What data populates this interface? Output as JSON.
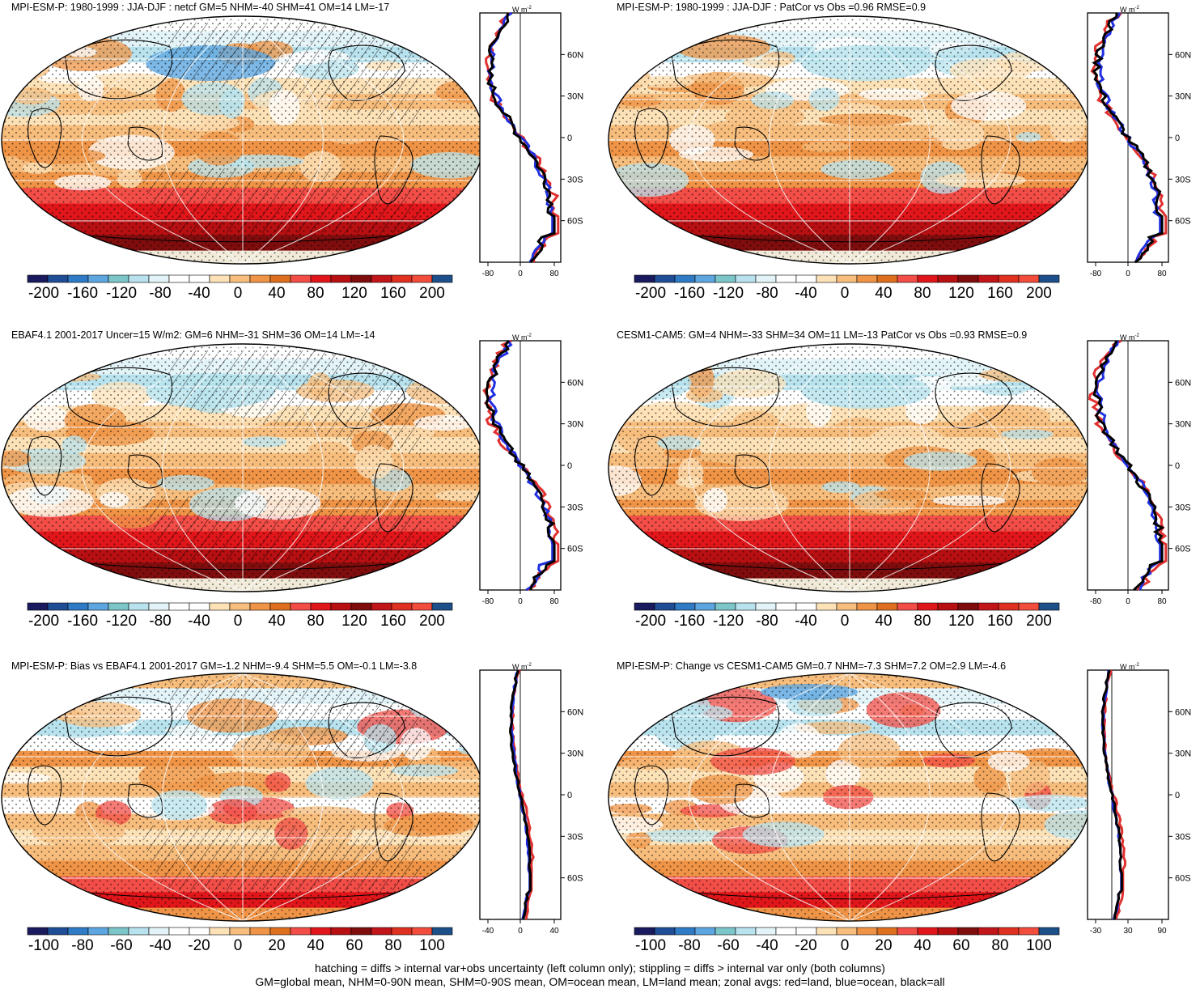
{
  "panels": [
    {
      "title": "MPI-ESM-P: 1980-1999 : JJA-DJF : netcf GM=5 NHM=-40 SHM=41 OM=14 LM=-17",
      "colorbar": [
        "-200",
        "-160",
        "-120",
        "-80",
        "-40",
        "0",
        "40",
        "80",
        "120",
        "160",
        "200"
      ],
      "zonal": {
        "unit": "W m",
        "unit_exp": "-2",
        "x_ticks": [
          "-80",
          "0",
          "80"
        ],
        "y_ticks": [
          "60N",
          "30N",
          "0",
          "30S",
          "60S"
        ]
      }
    },
    {
      "title": "MPI-ESM-P: 1980-1999 : JJA-DJF : PatCor vs Obs =0.96 RMSE=0.9",
      "colorbar": [
        "-200",
        "-160",
        "-120",
        "-80",
        "-40",
        "0",
        "40",
        "80",
        "120",
        "160",
        "200"
      ],
      "zonal": {
        "unit": "W m",
        "unit_exp": "-2",
        "x_ticks": [
          "-80",
          "0",
          "80"
        ],
        "y_ticks": [
          "60N",
          "30N",
          "0",
          "30S",
          "60S"
        ]
      }
    },
    {
      "title": "EBAF4.1 2001-2017 Uncer=15 W/m2: GM=6 NHM=-31 SHM=36 OM=14 LM=-14",
      "colorbar": [
        "-200",
        "-160",
        "-120",
        "-80",
        "-40",
        "0",
        "40",
        "80",
        "120",
        "160",
        "200"
      ],
      "zonal": {
        "unit": "W m",
        "unit_exp": "-2",
        "x_ticks": [
          "-80",
          "0",
          "80"
        ],
        "y_ticks": [
          "60N",
          "30N",
          "0",
          "30S",
          "60S"
        ]
      }
    },
    {
      "title": "CESM1-CAM5: GM=4 NHM=-33 SHM=34 OM=11 LM=-13 PatCor vs Obs =0.93 RMSE=0.9",
      "colorbar": [
        "-200",
        "-160",
        "-120",
        "-80",
        "-40",
        "0",
        "40",
        "80",
        "120",
        "160",
        "200"
      ],
      "zonal": {
        "unit": "W m",
        "unit_exp": "-2",
        "x_ticks": [
          "-80",
          "0",
          "80"
        ],
        "y_ticks": [
          "60N",
          "30N",
          "0",
          "30S",
          "60S"
        ]
      }
    },
    {
      "title": "MPI-ESM-P: Bias vs EBAF4.1 2001-2017 GM=-1.2 NHM=-9.4 SHM=5.5 OM=-0.1 LM=-3.8",
      "colorbar": [
        "-100",
        "-80",
        "-60",
        "-40",
        "-20",
        "0",
        "20",
        "40",
        "60",
        "80",
        "100"
      ],
      "zonal": {
        "unit": "W m",
        "unit_exp": "-2",
        "x_ticks": [
          "-40",
          "0",
          "40"
        ],
        "y_ticks": [
          "60N",
          "30N",
          "0",
          "30S",
          "60S"
        ]
      }
    },
    {
      "title": "MPI-ESM-P: Change vs CESM1-CAM5 GM=0.7 NHM=-7.3 SHM=7.2 OM=2.9 LM=-4.6",
      "colorbar": [
        "-100",
        "-80",
        "-60",
        "-40",
        "-20",
        "0",
        "20",
        "40",
        "60",
        "80",
        "100"
      ],
      "zonal": {
        "unit": "W m",
        "unit_exp": "-2",
        "x_ticks": [
          "-30",
          "30",
          "90"
        ],
        "y_ticks": [
          "60N",
          "30N",
          "0",
          "30S",
          "60S"
        ]
      }
    }
  ],
  "colors": {
    "palette": [
      "#1a1a5e",
      "#1f4e96",
      "#2f7bc6",
      "#5ea6e0",
      "#7cc5c8",
      "#b8e3ee",
      "#e3f4f8",
      "#ffffff",
      "#ffffff",
      "#fde2b8",
      "#f7bd7d",
      "#ef9446",
      "#de6f1e",
      "#f24d47",
      "#e0161a",
      "#b70f12",
      "#7f0d0d",
      "#c2151a",
      "#e03020",
      "#f24d3c",
      "#1d4f8a"
    ],
    "land_line": "#e03030",
    "ocean_line": "#2030e0",
    "all_line": "#000000"
  },
  "chart_data": [
    {
      "type": "heatmap",
      "title": "MPI-ESM-P: 1980-1999 : JJA-DJF : netcf GM=5 NHM=-40 SHM=41 OM=14 LM=-17",
      "colorbar_range": [
        -200,
        200
      ],
      "zonal_xlim": [
        -100,
        100
      ],
      "zonal_ylim": [
        -90,
        90
      ]
    },
    {
      "type": "heatmap",
      "title": "MPI-ESM-P: 1980-1999 : JJA-DJF : PatCor vs Obs =0.96 RMSE=0.9",
      "colorbar_range": [
        -200,
        200
      ],
      "zonal_xlim": [
        -100,
        100
      ],
      "zonal_ylim": [
        -90,
        90
      ]
    },
    {
      "type": "heatmap",
      "title": "EBAF4.1 2001-2017 Uncer=15 W/m2: GM=6 NHM=-31 SHM=36 OM=14 LM=-14",
      "colorbar_range": [
        -200,
        200
      ],
      "zonal_xlim": [
        -100,
        100
      ],
      "zonal_ylim": [
        -90,
        90
      ]
    },
    {
      "type": "heatmap",
      "title": "CESM1-CAM5: GM=4 NHM=-33 SHM=34 OM=11 LM=-13 PatCor vs Obs =0.93 RMSE=0.9",
      "colorbar_range": [
        -200,
        200
      ],
      "zonal_xlim": [
        -100,
        100
      ],
      "zonal_ylim": [
        -90,
        90
      ]
    },
    {
      "type": "heatmap",
      "title": "MPI-ESM-P: Bias vs EBAF4.1 2001-2017 GM=-1.2 NHM=-9.4 SHM=5.5 OM=-0.1 LM=-3.8",
      "colorbar_range": [
        -100,
        100
      ],
      "zonal_xlim": [
        -40,
        40
      ],
      "zonal_ylim": [
        -90,
        90
      ]
    },
    {
      "type": "heatmap",
      "title": "MPI-ESM-P: Change vs CESM1-CAM5 GM=0.7 NHM=-7.3 SHM=7.2 OM=2.9 LM=-4.6",
      "colorbar_range": [
        -100,
        100
      ],
      "zonal_xlim": [
        -40,
        100
      ],
      "zonal_ylim": [
        -90,
        90
      ]
    }
  ],
  "footer": {
    "line1": "hatching = diffs > internal var+obs uncertainty (left column only); stippling = diffs > internal var only (both columns)",
    "line2": "GM=global mean, NHM=0-90N mean, SHM=0-90S mean, OM=ocean mean, LM=land mean; zonal avgs: red=land, blue=ocean, black=all"
  }
}
